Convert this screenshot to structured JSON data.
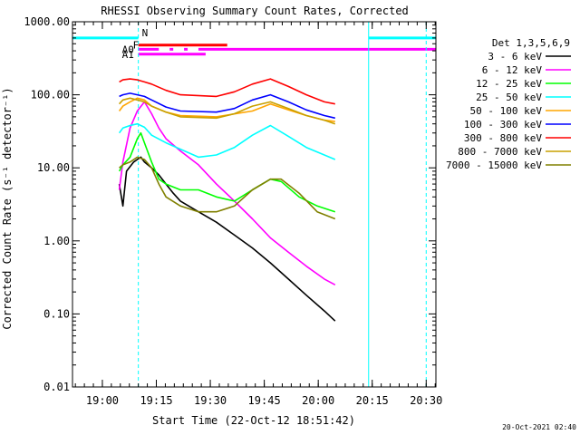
{
  "chart_data": {
    "type": "line",
    "title": "RHESSI Observing Summary Count Rates, Corrected",
    "xlabel": "Start Time (22-Oct-12 18:51:42)",
    "ylabel": "Corrected Count Rate (s⁻¹ detector⁻¹)",
    "yscale": "log",
    "ylim": [
      0.01,
      1000
    ],
    "xlim_minutes": [
      0,
      101
    ],
    "x_ticks": [
      {
        "label": "19:00",
        "minutes": 8.3
      },
      {
        "label": "19:15",
        "minutes": 23.3
      },
      {
        "label": "19:30",
        "minutes": 38.3
      },
      {
        "label": "19:45",
        "minutes": 53.3
      },
      {
        "label": "20:00",
        "minutes": 68.3
      },
      {
        "label": "20:15",
        "minutes": 83.3
      },
      {
        "label": "20:30",
        "minutes": 98.3
      }
    ],
    "y_ticks": [
      {
        "label": "1000.00",
        "value": 1000
      },
      {
        "label": "100.00",
        "value": 100
      },
      {
        "label": "10.00",
        "value": 10
      },
      {
        "label": "1.00",
        "value": 1
      },
      {
        "label": "0.10",
        "value": 0.1
      },
      {
        "label": "0.01",
        "value": 0.01
      }
    ],
    "legend_header": "Det 1,3,5,6,9",
    "legend_position": "right",
    "grid": false,
    "series": [
      {
        "name": "3 - 6 keV",
        "color": "#000000",
        "x": [
          13,
          14,
          15,
          17,
          18,
          19,
          20,
          22,
          24,
          26,
          28,
          30,
          35,
          40,
          45,
          50,
          55,
          60,
          65,
          70,
          73
        ],
        "y": [
          6,
          3,
          9,
          12,
          13,
          14,
          12,
          10,
          8,
          6,
          4.5,
          3.5,
          2.5,
          1.8,
          1.2,
          0.8,
          0.5,
          0.3,
          0.18,
          0.11,
          0.08
        ]
      },
      {
        "name": "6 - 12 keV",
        "color": "#ff00ff",
        "x": [
          13,
          14,
          16,
          18,
          20,
          22,
          24,
          26,
          30,
          35,
          40,
          45,
          50,
          55,
          60,
          65,
          70,
          73
        ],
        "y": [
          5,
          12,
          35,
          60,
          80,
          55,
          35,
          25,
          17,
          11,
          6,
          3.5,
          2,
          1.1,
          0.7,
          0.45,
          0.3,
          0.25
        ]
      },
      {
        "name": "12 - 25 keV",
        "color": "#00ff00",
        "x": [
          13,
          14,
          16,
          18,
          19,
          20,
          22,
          24,
          26,
          30,
          35,
          40,
          45,
          50,
          55,
          58,
          63,
          68,
          73
        ],
        "y": [
          9,
          11,
          14,
          25,
          30,
          22,
          12,
          7,
          6,
          5,
          5,
          4,
          3.5,
          5,
          7,
          6.5,
          4,
          3,
          2.5
        ]
      },
      {
        "name": "25 - 50 keV",
        "color": "#00ffff",
        "x": [
          13,
          14,
          16,
          18,
          20,
          22,
          26,
          30,
          35,
          40,
          45,
          50,
          55,
          60,
          65,
          70,
          73
        ],
        "y": [
          30,
          35,
          38,
          40,
          36,
          28,
          22,
          18,
          14,
          15,
          19,
          28,
          38,
          27,
          19,
          15,
          13
        ]
      },
      {
        "name": "50 - 100 keV",
        "color": "#ffa500",
        "x": [
          13,
          14,
          16,
          18,
          20,
          22,
          26,
          30,
          40,
          50,
          55,
          60,
          65,
          70,
          73
        ],
        "y": [
          60,
          70,
          80,
          90,
          85,
          70,
          58,
          52,
          50,
          60,
          75,
          62,
          52,
          45,
          43
        ]
      },
      {
        "name": "100 - 300 keV",
        "color": "#0000ff",
        "x": [
          13,
          14,
          16,
          18,
          20,
          22,
          26,
          30,
          40,
          45,
          50,
          55,
          60,
          65,
          70,
          73
        ],
        "y": [
          95,
          100,
          105,
          100,
          95,
          85,
          68,
          60,
          58,
          65,
          85,
          100,
          80,
          62,
          52,
          48
        ]
      },
      {
        "name": "300 - 800 keV",
        "color": "#ff0000",
        "x": [
          13,
          14,
          16,
          18,
          20,
          22,
          26,
          30,
          40,
          45,
          50,
          55,
          60,
          65,
          70,
          73
        ],
        "y": [
          150,
          160,
          165,
          160,
          150,
          140,
          115,
          100,
          95,
          110,
          140,
          165,
          130,
          100,
          80,
          75
        ]
      },
      {
        "name": "800 - 7000 keV",
        "color": "#c8a000",
        "x": [
          13,
          14,
          16,
          18,
          20,
          22,
          26,
          30,
          40,
          45,
          50,
          55,
          60,
          65,
          70,
          73
        ],
        "y": [
          75,
          85,
          90,
          85,
          80,
          70,
          58,
          50,
          48,
          55,
          70,
          80,
          65,
          52,
          45,
          40
        ]
      },
      {
        "name": "7000 - 15000 keV",
        "color": "#808000",
        "x": [
          13,
          14,
          16,
          18,
          20,
          22,
          24,
          26,
          30,
          35,
          40,
          45,
          50,
          55,
          58,
          63,
          68,
          73
        ],
        "y": [
          10,
          11,
          12,
          14,
          13,
          10,
          6,
          4,
          3,
          2.5,
          2.5,
          3,
          5,
          7,
          7,
          4.5,
          2.5,
          2
        ]
      }
    ],
    "vertical_lines": [
      {
        "minutes": 0,
        "color": "#00ffff",
        "style": "solid"
      },
      {
        "minutes": 18.3,
        "color": "#00ffff",
        "style": "dashed"
      },
      {
        "minutes": 82.3,
        "color": "#00ffff",
        "style": "solid"
      },
      {
        "minutes": 98.3,
        "color": "#00ffff",
        "style": "dashed"
      }
    ],
    "flag_bars": [
      {
        "label": "N",
        "label_color": "#00ffff",
        "color": "#00ffff",
        "y_value": 600,
        "segments": [
          [
            0,
            18.3
          ],
          [
            82.3,
            101
          ]
        ]
      },
      {
        "label": "F",
        "label_color": "#ff0000",
        "color": "#ff0000",
        "y_value": 480,
        "segments": [
          [
            18.3,
            43
          ]
        ]
      },
      {
        "label": "A0",
        "label_color": "#ff00ff",
        "color": "#ff00ff",
        "y_value": 420,
        "segments": [
          [
            18.3,
            24
          ],
          [
            27,
            28
          ],
          [
            31,
            32
          ],
          [
            35,
            101
          ]
        ]
      },
      {
        "label": "A1",
        "label_color": "#ff00ff",
        "color": "#ff00ff",
        "y_value": 360,
        "segments": [
          [
            18.3,
            37
          ]
        ]
      }
    ]
  },
  "footer_date": "20-Oct-2021 02:40"
}
